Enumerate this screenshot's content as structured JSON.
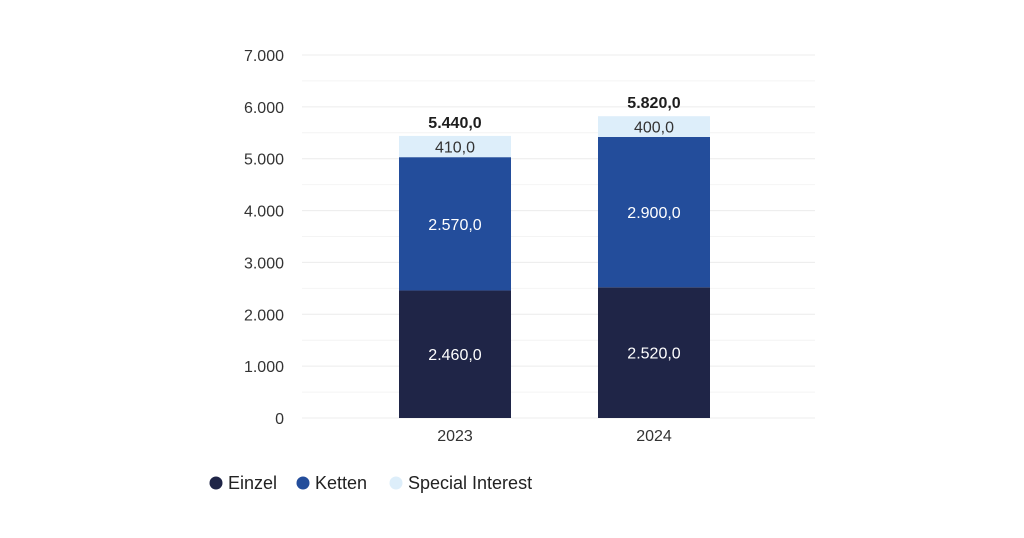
{
  "chart_data": {
    "type": "bar",
    "stacked": true,
    "categories": [
      "2023",
      "2024"
    ],
    "series": [
      {
        "name": "Einzel",
        "values": [
          2460,
          2520
        ],
        "value_labels": [
          "2.460,0",
          "2.520,0"
        ],
        "color": "#1f2547"
      },
      {
        "name": "Ketten",
        "values": [
          2570,
          2900
        ],
        "value_labels": [
          "2.570,0",
          "2.900,0"
        ],
        "color": "#234d9b"
      },
      {
        "name": "Special Interest",
        "values": [
          410,
          400
        ],
        "value_labels": [
          "410,0",
          "400,0"
        ],
        "color": "#ddeefa"
      }
    ],
    "totals": [
      5440,
      5820
    ],
    "total_labels": [
      "5.440,0",
      "5.820,0"
    ],
    "ylim": [
      0,
      7000
    ],
    "yticks": [
      0,
      1000,
      2000,
      3000,
      4000,
      5000,
      6000,
      7000
    ],
    "ytick_labels": [
      "0",
      "1.000",
      "2.000",
      "3.000",
      "4.000",
      "5.000",
      "6.000",
      "7.000"
    ],
    "grid": true,
    "legend_position": "bottom-left",
    "title": "",
    "xlabel": "",
    "ylabel": ""
  }
}
